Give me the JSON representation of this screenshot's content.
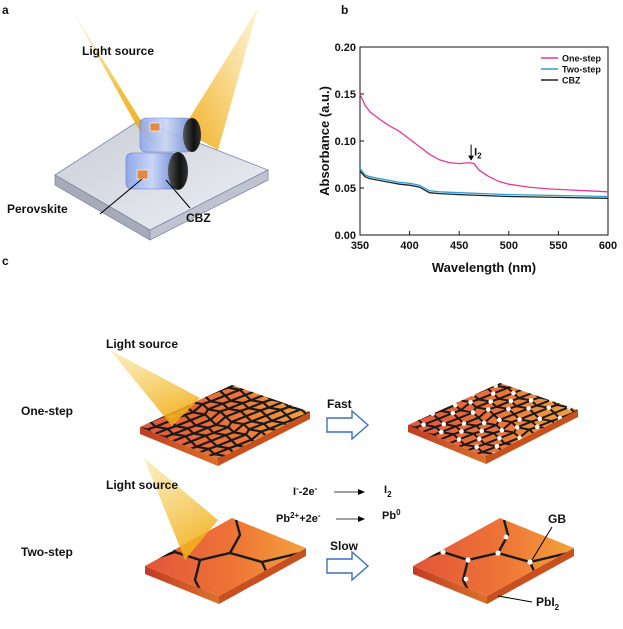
{
  "panels": {
    "a": "a",
    "b": "b",
    "c": "c"
  },
  "panel_a": {
    "light_source": "Light source",
    "perovskite": "Perovskite",
    "cbz": "CBZ"
  },
  "panel_c": {
    "row1_light": "Light source",
    "row1_label": "One-step",
    "row1_arrow": "Fast",
    "row2_light": "Light source",
    "row2_label": "Two-step",
    "row2_arrow": "Slow",
    "reaction1_lhs_base": "I",
    "reaction1_lhs_sup": "-",
    "reaction1_lhs_rest": "-2e",
    "reaction1_lhs_sup2": "-",
    "reaction1_rhs_base": "I",
    "reaction1_rhs_sub": "2",
    "reaction2_lhs_base": "Pb",
    "reaction2_lhs_sup": "2+",
    "reaction2_lhs_rest": "+2e",
    "reaction2_lhs_sup2": "-",
    "reaction2_rhs_base": "Pb",
    "reaction2_rhs_sup": "0",
    "gb": "GB",
    "pbi2_base": "PbI",
    "pbi2_sub": "2"
  },
  "chart_data": {
    "type": "line",
    "xlabel": "Wavelength (nm)",
    "ylabel": "Absorbance (a.u.)",
    "xlim": [
      350,
      600
    ],
    "ylim": [
      0.0,
      0.2
    ],
    "xticks": [
      350,
      400,
      450,
      500,
      550,
      600
    ],
    "xtick_labels": [
      "350",
      "400",
      "450",
      "500",
      "550",
      "600"
    ],
    "yticks": [
      0.0,
      0.05,
      0.1,
      0.15,
      0.2
    ],
    "ytick_labels": [
      "0.00",
      "0.05",
      "0.10",
      "0.15",
      "0.20"
    ],
    "legend_position": "top-right",
    "annotation": {
      "base": "I",
      "sub": "2",
      "x": 462,
      "y": 0.077
    },
    "series": [
      {
        "name": "One-step",
        "color": "#e6399b",
        "x": [
          350,
          355,
          360,
          370,
          380,
          390,
          400,
          410,
          420,
          430,
          440,
          450,
          460,
          465,
          470,
          480,
          490,
          500,
          520,
          540,
          560,
          580,
          600
        ],
        "values": [
          0.15,
          0.138,
          0.131,
          0.123,
          0.116,
          0.11,
          0.102,
          0.094,
          0.086,
          0.08,
          0.077,
          0.076,
          0.077,
          0.076,
          0.069,
          0.062,
          0.057,
          0.054,
          0.051,
          0.049,
          0.048,
          0.047,
          0.046
        ]
      },
      {
        "name": "Two-step",
        "color": "#2aa1d6",
        "x": [
          350,
          355,
          360,
          370,
          380,
          390,
          400,
          410,
          420,
          430,
          450,
          500,
          550,
          600
        ],
        "values": [
          0.071,
          0.064,
          0.062,
          0.06,
          0.058,
          0.056,
          0.055,
          0.053,
          0.047,
          0.046,
          0.045,
          0.043,
          0.042,
          0.041
        ]
      },
      {
        "name": "CBZ",
        "color": "#222222",
        "x": [
          350,
          355,
          360,
          370,
          380,
          390,
          400,
          410,
          420,
          430,
          450,
          500,
          550,
          600
        ],
        "values": [
          0.068,
          0.062,
          0.06,
          0.058,
          0.056,
          0.054,
          0.053,
          0.051,
          0.045,
          0.044,
          0.043,
          0.041,
          0.04,
          0.039
        ]
      }
    ]
  }
}
